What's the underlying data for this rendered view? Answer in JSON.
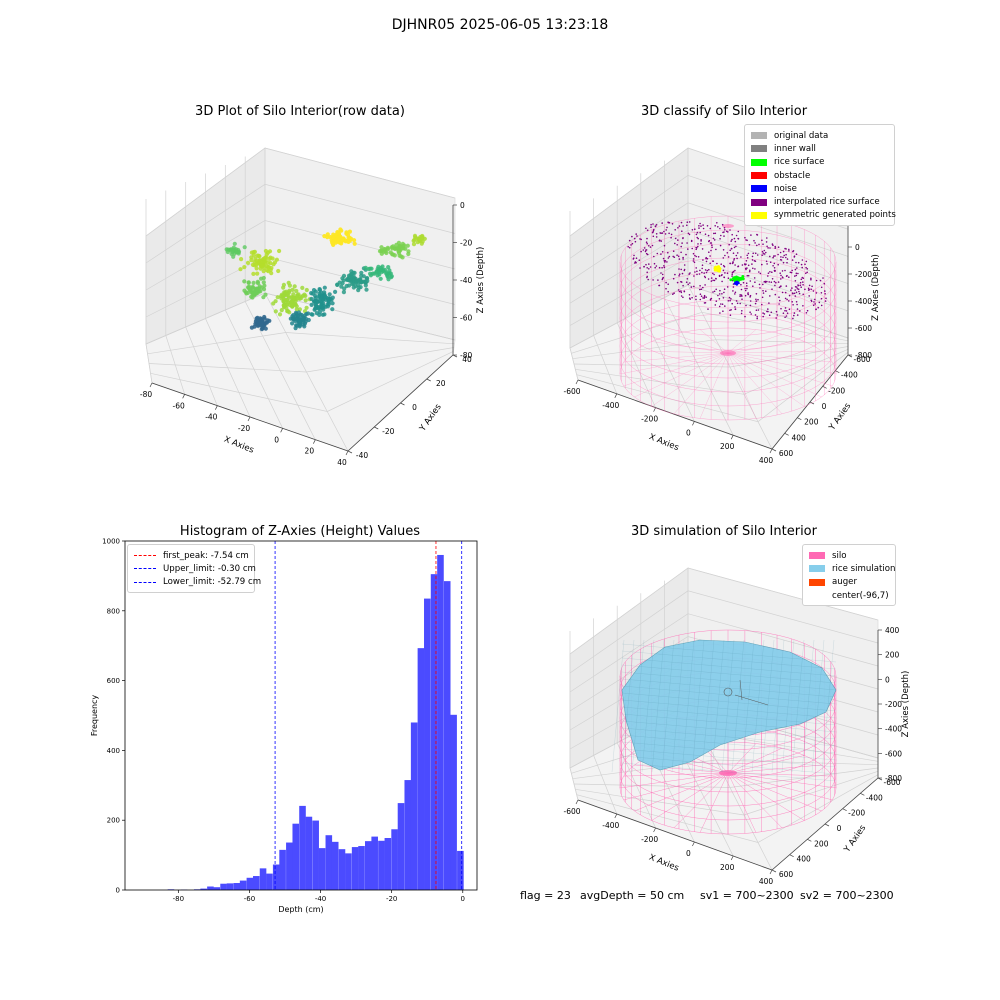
{
  "figure": {
    "suptitle": "DJHNR05 2025-06-05 13:23:18",
    "footer": {
      "flag": "flag = 23",
      "avg_depth": "avgDepth = 50 cm",
      "sv1": "sv1 = 700~2300",
      "sv2": "sv2 = 700~2300"
    }
  },
  "chart_data": [
    {
      "type": "scatter3d",
      "title": "3D Plot of Silo Interior(row data)",
      "xlabel": "X Axies",
      "ylabel": "Y Axies",
      "zlabel": "Z Axies (Depth)",
      "x_ticks": [
        "-80",
        "-60",
        "-40",
        "-20",
        "0",
        "20",
        "40"
      ],
      "y_ticks": [
        "-40",
        "-20",
        "0",
        "20",
        "40"
      ],
      "z_ticks": [
        "0",
        "-20",
        "-40",
        "-60",
        "-80"
      ],
      "colormap": "viridis",
      "colors": {
        "high": "#fde725",
        "mid": "#21918c",
        "low": "#31688e"
      }
    },
    {
      "type": "scatter3d",
      "title": "3D classify of Silo Interior",
      "xlabel": "X Axies",
      "ylabel": "Y Axies",
      "zlabel": "Z Axies (Depth)",
      "x_ticks": [
        "-600",
        "-400",
        "-200",
        "0",
        "200",
        "400"
      ],
      "y_ticks": [
        "600",
        "400",
        "200",
        "0",
        "-200",
        "-400",
        "-600"
      ],
      "z_ticks": [
        "200",
        "0",
        "-200",
        "-400",
        "-600",
        "-800"
      ],
      "legend": [
        {
          "label": "original data",
          "color": "#b3b3b3"
        },
        {
          "label": "inner wall",
          "color": "#808080"
        },
        {
          "label": "rice surface",
          "color": "#00ff00"
        },
        {
          "label": "obstacle",
          "color": "#ff0000"
        },
        {
          "label": "noise",
          "color": "#0000ff"
        },
        {
          "label": "interpolated rice surface",
          "color": "#800080"
        },
        {
          "label": "symmetric generated points",
          "color": "#ffff00"
        }
      ],
      "wire_color": "#ff69b4"
    },
    {
      "type": "bar",
      "title": "Histogram of Z-Axies (Height) Values",
      "xlabel": "Depth (cm)",
      "ylabel": "Frequency",
      "xlim": [
        -95,
        4
      ],
      "ylim": [
        0,
        1000
      ],
      "x_ticks": [
        -80,
        -60,
        -40,
        -20,
        0
      ],
      "y_ticks": [
        0,
        200,
        400,
        600,
        800,
        1000
      ],
      "bar_color": "#4b4bff",
      "bin_width": 1.85,
      "bins": [
        [
          -83.0,
          2
        ],
        [
          -79.3,
          1
        ],
        [
          -75.6,
          2
        ],
        [
          -73.8,
          4
        ],
        [
          -71.9,
          10
        ],
        [
          -70.1,
          8
        ],
        [
          -68.2,
          18
        ],
        [
          -66.4,
          19
        ],
        [
          -64.5,
          20
        ],
        [
          -62.7,
          27
        ],
        [
          -60.8,
          35
        ],
        [
          -59.0,
          40
        ],
        [
          -57.1,
          62
        ],
        [
          -55.3,
          47
        ],
        [
          -53.4,
          73
        ],
        [
          -51.6,
          115
        ],
        [
          -49.7,
          136
        ],
        [
          -47.9,
          190
        ],
        [
          -46.0,
          241
        ],
        [
          -44.2,
          210
        ],
        [
          -42.3,
          199
        ],
        [
          -40.5,
          120
        ],
        [
          -38.6,
          157
        ],
        [
          -36.8,
          138
        ],
        [
          -34.9,
          117
        ],
        [
          -33.1,
          105
        ],
        [
          -31.2,
          123
        ],
        [
          -29.4,
          126
        ],
        [
          -27.5,
          140
        ],
        [
          -25.7,
          153
        ],
        [
          -23.8,
          141
        ],
        [
          -22.0,
          149
        ],
        [
          -20.1,
          174
        ],
        [
          -18.3,
          249
        ],
        [
          -16.4,
          315
        ],
        [
          -14.6,
          480
        ],
        [
          -12.7,
          693
        ],
        [
          -10.9,
          835
        ],
        [
          -9.0,
          905
        ],
        [
          -7.2,
          960
        ],
        [
          -5.3,
          885
        ],
        [
          -3.5,
          502
        ],
        [
          -1.6,
          112
        ]
      ],
      "lines": [
        {
          "label": "first_peak: -7.54 cm",
          "value": -7.54,
          "color": "#ff0000"
        },
        {
          "label": "Upper_limit: -0.30 cm",
          "value": -0.3,
          "color": "#0000ff"
        },
        {
          "label": "Lower_limit: -52.79 cm",
          "value": -52.79,
          "color": "#0000ff"
        }
      ]
    },
    {
      "type": "surface3d",
      "title": "3D simulation of Silo Interior",
      "xlabel": "X Axies",
      "ylabel": "Y Axies",
      "zlabel": "Z Axies (Depth)",
      "x_ticks": [
        "-600",
        "-400",
        "-200",
        "0",
        "200",
        "400"
      ],
      "y_ticks": [
        "600",
        "400",
        "200",
        "0",
        "-200",
        "-400",
        "-600"
      ],
      "z_ticks": [
        "400",
        "200",
        "0",
        "-200",
        "-400",
        "-600",
        "-800"
      ],
      "legend": [
        {
          "label": "silo",
          "color": "#ff69b4"
        },
        {
          "label": "rice simulation",
          "color": "#87ceeb"
        },
        {
          "label": "auger",
          "color": "#ff4500"
        },
        {
          "label": "center(-96,7)",
          "color": ""
        }
      ],
      "surface_color": "#87ceeb"
    }
  ]
}
